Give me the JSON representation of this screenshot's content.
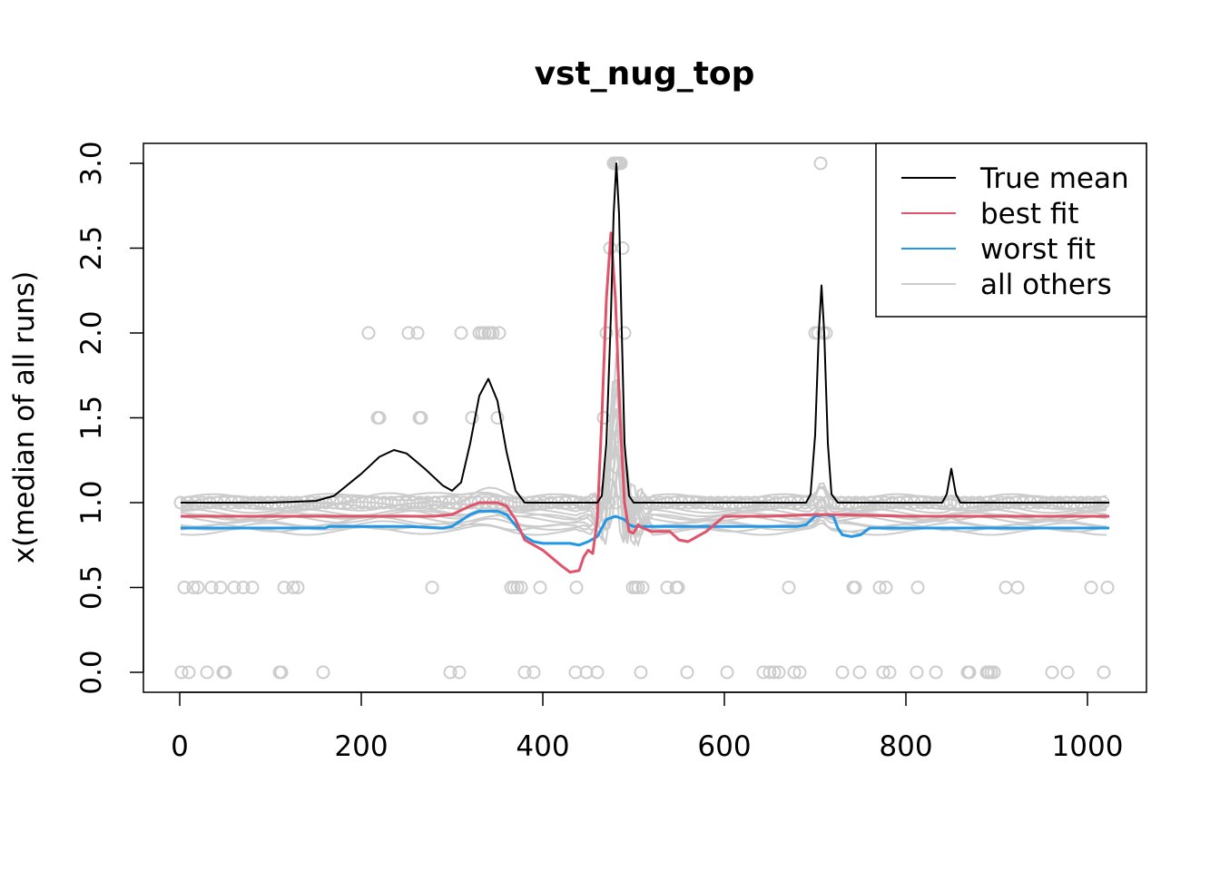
{
  "chart_data": {
    "type": "line",
    "title": "vst_nug_top",
    "xlabel": "",
    "ylabel": "x(median of all runs)",
    "xlim": [
      0,
      1024
    ],
    "ylim": [
      0,
      3
    ],
    "x_ticks": [
      "0",
      "200",
      "400",
      "600",
      "800",
      "1000"
    ],
    "y_ticks": [
      "0.0",
      "0.5",
      "1.0",
      "1.5",
      "2.0",
      "2.5",
      "3.0"
    ],
    "legend_position": "top-right",
    "colors": {
      "true_mean": "#000000",
      "best_fit": "#df536b",
      "worst_fit": "#2297e6",
      "others": "#cccccc"
    },
    "legend": [
      {
        "label": "True mean",
        "color": "#000000"
      },
      {
        "label": "best fit",
        "color": "#df536b"
      },
      {
        "label": "worst fit",
        "color": "#2297e6"
      },
      {
        "label": "all others",
        "color": "#cccccc"
      }
    ],
    "series": [
      {
        "name": "True mean",
        "color": "#000000",
        "x": [
          1,
          100,
          150,
          170,
          200,
          220,
          236,
          250,
          270,
          290,
          300,
          310,
          320,
          330,
          340,
          350,
          360,
          370,
          380,
          460,
          465,
          470,
          475,
          478,
          481,
          484,
          487,
          490,
          495,
          500,
          690,
          695,
          700,
          704,
          707,
          710,
          714,
          718,
          725,
          840,
          845,
          850,
          855,
          860,
          1024
        ],
        "y": [
          1.0,
          1.0,
          1.01,
          1.04,
          1.17,
          1.27,
          1.31,
          1.29,
          1.2,
          1.1,
          1.07,
          1.12,
          1.35,
          1.63,
          1.73,
          1.6,
          1.3,
          1.07,
          1.0,
          1.0,
          1.04,
          1.35,
          2.1,
          2.7,
          3.0,
          2.7,
          2.0,
          1.35,
          1.04,
          1.0,
          1.0,
          1.05,
          1.4,
          2.0,
          2.28,
          2.0,
          1.35,
          1.05,
          1.0,
          1.0,
          1.05,
          1.2,
          1.05,
          1.0,
          1.0
        ]
      },
      {
        "name": "best fit",
        "color": "#df536b",
        "x": [
          1,
          100,
          200,
          280,
          300,
          320,
          330,
          350,
          360,
          370,
          380,
          400,
          420,
          430,
          440,
          445,
          450,
          455,
          460,
          465,
          470,
          475,
          480,
          485,
          490,
          495,
          500,
          505,
          510,
          520,
          540,
          550,
          560,
          580,
          600,
          650,
          700,
          720,
          800,
          1024
        ],
        "y": [
          0.92,
          0.92,
          0.92,
          0.92,
          0.93,
          0.98,
          1.0,
          1.0,
          0.98,
          0.9,
          0.78,
          0.72,
          0.63,
          0.59,
          0.6,
          0.68,
          0.72,
          0.7,
          0.9,
          1.5,
          2.2,
          2.59,
          2.2,
          1.5,
          1.0,
          0.83,
          0.82,
          0.87,
          0.85,
          0.83,
          0.83,
          0.78,
          0.77,
          0.83,
          0.92,
          0.92,
          0.93,
          0.93,
          0.92,
          0.92
        ]
      },
      {
        "name": "worst fit",
        "color": "#2297e6",
        "x": [
          1,
          100,
          150,
          160,
          165,
          200,
          250,
          290,
          300,
          320,
          330,
          350,
          360,
          380,
          390,
          400,
          420,
          430,
          440,
          450,
          460,
          465,
          470,
          480,
          490,
          495,
          500,
          600,
          680,
          690,
          700,
          710,
          720,
          725,
          730,
          740,
          750,
          760,
          800,
          1024
        ],
        "y": [
          0.85,
          0.85,
          0.85,
          0.85,
          0.86,
          0.86,
          0.86,
          0.85,
          0.86,
          0.93,
          0.95,
          0.95,
          0.93,
          0.8,
          0.77,
          0.76,
          0.76,
          0.76,
          0.75,
          0.77,
          0.8,
          0.85,
          0.9,
          0.92,
          0.9,
          0.87,
          0.86,
          0.86,
          0.86,
          0.87,
          0.92,
          0.93,
          0.92,
          0.85,
          0.81,
          0.8,
          0.81,
          0.85,
          0.85,
          0.85
        ]
      }
    ],
    "observations_x": [
      2,
      5,
      10,
      15,
      20,
      30,
      35,
      45,
      48,
      50,
      60,
      70,
      80,
      110,
      112,
      115,
      125,
      130,
      158,
      208,
      218,
      220,
      252,
      262,
      264,
      266,
      278,
      298,
      308,
      310,
      322,
      330,
      333,
      336,
      340,
      342,
      345,
      350,
      352,
      365,
      368,
      372,
      376,
      380,
      390,
      397,
      436,
      437,
      448,
      460,
      467,
      470,
      474,
      478,
      480,
      482,
      484,
      486,
      488,
      490,
      499,
      502,
      505,
      510,
      508,
      537,
      547,
      549,
      559,
      603,
      643,
      650,
      655,
      660,
      671,
      677,
      683,
      700,
      703,
      706,
      709,
      712,
      730,
      742,
      744,
      749,
      771,
      775,
      778,
      782,
      812,
      813,
      833,
      868,
      869,
      870,
      889,
      891,
      894,
      897,
      910,
      923,
      961,
      978,
      1004,
      1018,
      1022
    ],
    "observations_y": [
      0.0,
      0.5,
      0.0,
      0.5,
      0.5,
      0.0,
      0.5,
      0.5,
      0.0,
      0.0,
      0.5,
      0.5,
      0.5,
      0.0,
      0.0,
      0.5,
      0.5,
      0.5,
      0.0,
      2.0,
      1.5,
      1.5,
      2.0,
      2.0,
      1.5,
      1.5,
      0.5,
      0.0,
      0.0,
      2.0,
      1.5,
      2.0,
      2.0,
      2.0,
      2.0,
      2.0,
      2.0,
      1.5,
      2.0,
      0.5,
      0.5,
      0.5,
      0.5,
      0.0,
      0.0,
      0.5,
      0.0,
      0.5,
      0.0,
      0.0,
      1.5,
      2.0,
      2.5,
      3.0,
      3.0,
      3.0,
      3.0,
      3.0,
      2.5,
      2.0,
      0.5,
      0.5,
      0.5,
      0.5,
      0.0,
      0.5,
      0.5,
      0.5,
      0.0,
      0.0,
      0.0,
      0.0,
      0.0,
      0.0,
      0.5,
      0.0,
      0.0,
      2.0,
      2.0,
      3.0,
      2.0,
      2.0,
      0.0,
      0.5,
      0.5,
      0.0,
      0.5,
      0.0,
      0.5,
      0.0,
      0.0,
      0.5,
      0.0,
      0.0,
      0.0,
      0.0,
      0.0,
      0.0,
      0.0,
      0.0,
      0.5,
      0.5,
      0.0,
      0.0,
      0.5,
      0.0,
      0.5
    ]
  }
}
